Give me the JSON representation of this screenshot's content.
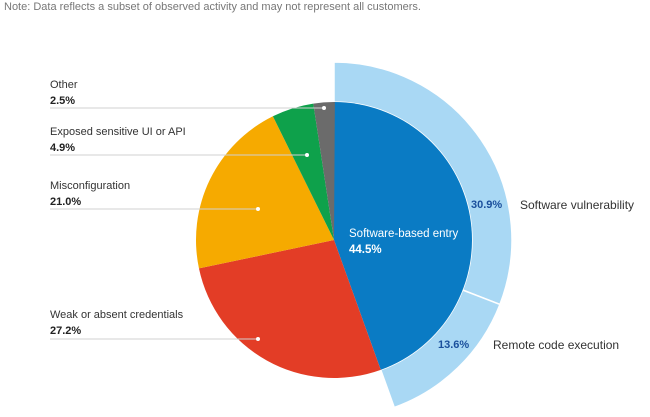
{
  "note": "Note: Data reflects a subset of observed activity and may not represent all customers.",
  "chart_data": {
    "type": "pie",
    "slices": [
      {
        "name": "Software-based entry",
        "value": 44.5,
        "label": "44.5%",
        "color": "#0a7bc4"
      },
      {
        "name": "Weak or absent credentials",
        "value": 27.2,
        "label": "27.2%",
        "color": "#e33d26"
      },
      {
        "name": "Misconfiguration",
        "value": 21.0,
        "label": "21.0%",
        "color": "#f6aa00"
      },
      {
        "name": "Exposed sensitive UI or API",
        "value": 4.9,
        "label": "4.9%",
        "color": "#0ea14b"
      },
      {
        "name": "Other",
        "value": 2.5,
        "label": "2.5%",
        "color": "#6b6b6b"
      }
    ],
    "breakdown": {
      "parent": "Software-based entry",
      "color": "#a9d8f4",
      "label_color": "#1a4f9c",
      "segments": [
        {
          "name": "Software vulnerability",
          "value": 30.9,
          "label": "30.9%"
        },
        {
          "name": "Remote code execution",
          "value": 13.6,
          "label": "13.6%"
        }
      ]
    }
  }
}
